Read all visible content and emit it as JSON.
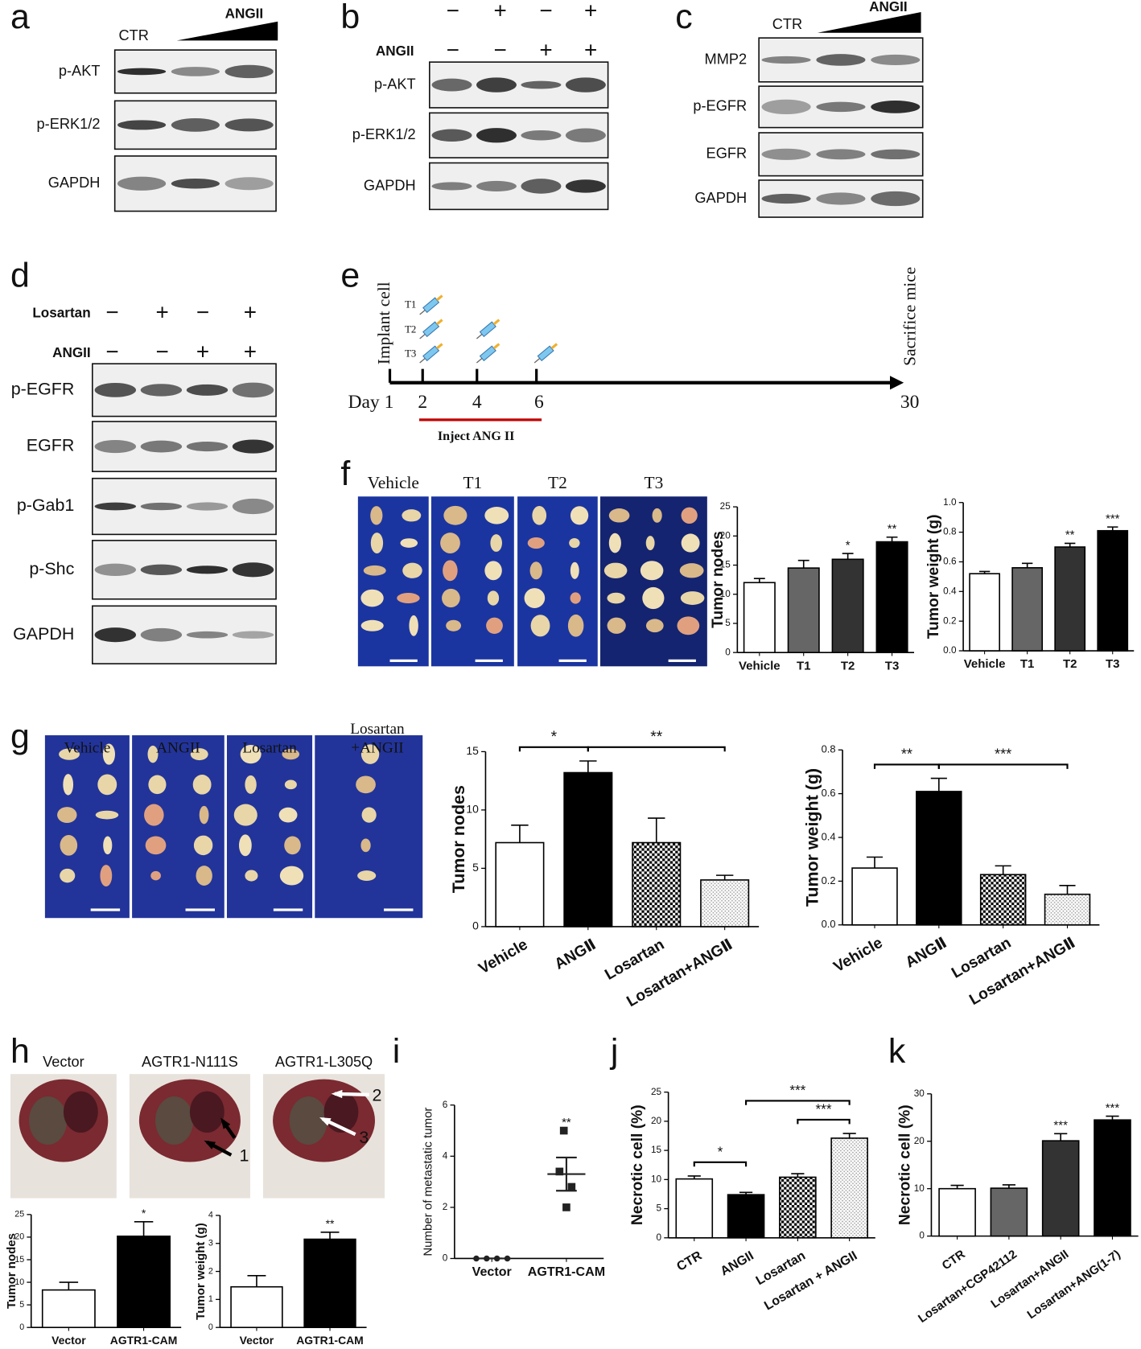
{
  "panel_letters": [
    "a",
    "b",
    "c",
    "d",
    "e",
    "f",
    "g",
    "h",
    "i",
    "j",
    "k"
  ],
  "blots": [
    {
      "header": [
        "CTR",
        "ANGII"
      ],
      "rows": [
        "p-AKT",
        "p-ERK1/2",
        "GAPDH"
      ]
    },
    {
      "treatments": [
        {
          "signs": [
            "−",
            "+",
            "−",
            "+"
          ]
        },
        {
          "label": "ANGII",
          "signs": [
            "−",
            "−",
            "+",
            "+"
          ]
        }
      ],
      "rows": [
        "p-AKT",
        "p-ERK1/2",
        "GAPDH"
      ]
    },
    {
      "header": [
        "CTR",
        "ANGII"
      ],
      "rows": [
        "MMP2",
        "p-EGFR",
        "EGFR",
        "GAPDH"
      ]
    },
    {
      "treatments": [
        {
          "label": "Losartan",
          "signs": [
            "−",
            "+",
            "−",
            "+"
          ]
        },
        {
          "label": "ANGII",
          "signs": [
            "−",
            "−",
            "+",
            "+"
          ]
        }
      ],
      "rows": [
        "p-EGFR",
        "EGFR",
        "p-Gab1",
        "p-Shc",
        "GAPDH"
      ]
    }
  ],
  "timeline": {
    "start_label": "Implant cell",
    "groups": [
      "T1",
      "T2",
      "T3"
    ],
    "day_label": "Day 1",
    "days": [
      "2",
      "4",
      "6",
      "30"
    ],
    "end_label": "Sacrifice mice",
    "inject_label": "Inject ANG II"
  },
  "photos": {
    "f": [
      "Vehicle",
      "T1",
      "T2",
      "T3"
    ],
    "g": [
      [
        "Vehicle"
      ],
      [
        "ANGII"
      ],
      [
        "Losartan"
      ],
      [
        "Losartan",
        "+ANGII"
      ]
    ],
    "h": [
      "Vector",
      "AGTR1-N111S",
      "AGTR1-L305Q"
    ],
    "h_arrows": [
      "1",
      "2",
      "3"
    ]
  },
  "chart_data": [
    {
      "type": "bar",
      "ylabel": "Tumor nodes",
      "categories": [
        "Vehicle",
        "T1",
        "T2",
        "T3"
      ],
      "values": [
        12,
        14.5,
        16,
        19
      ],
      "errors": [
        0.7,
        1.3,
        1.0,
        0.8
      ],
      "fills": [
        "#ffffff",
        "#666666",
        "#333333",
        "#000000"
      ],
      "sig_labels": [
        null,
        null,
        "*",
        "**"
      ],
      "ylim": [
        0,
        25
      ],
      "yticks": [
        0,
        5,
        10,
        15,
        20,
        25
      ]
    },
    {
      "type": "bar",
      "ylabel": "Tumor weight (g)",
      "categories": [
        "Vehicle",
        "T1",
        "T2",
        "T3"
      ],
      "values": [
        0.52,
        0.56,
        0.7,
        0.81
      ],
      "errors": [
        0.015,
        0.03,
        0.025,
        0.025
      ],
      "fills": [
        "#ffffff",
        "#666666",
        "#333333",
        "#000000"
      ],
      "sig_labels": [
        null,
        null,
        "**",
        "***"
      ],
      "ylim": [
        0,
        1.0
      ],
      "yticks": [
        {
          "value": 0,
          "label": "0.0"
        },
        0.2,
        0.4,
        0.6,
        0.8,
        {
          "value": 1,
          "label": "1.0"
        }
      ]
    },
    {
      "type": "bar",
      "ylabel": "Tumor nodes",
      "categories": [
        "Vehicle",
        "ANGⅡ",
        "Losartan",
        "Losartan+ANGⅡ"
      ],
      "values": [
        7.2,
        13.2,
        7.2,
        4.0
      ],
      "errors": [
        1.5,
        1.0,
        2.1,
        0.4
      ],
      "fills": [
        "#ffffff",
        "#000000",
        "checker",
        "dots"
      ],
      "brackets": [
        {
          "text": "*",
          "from": "Vehicle",
          "to": "ANGⅡ"
        },
        {
          "text": "**",
          "from": "ANGⅡ",
          "to": "Losartan+ANGⅡ"
        }
      ],
      "ylim": [
        0,
        15
      ],
      "yticks": [
        0,
        5,
        10,
        15
      ]
    },
    {
      "type": "bar",
      "ylabel": "Tumor weight (g)",
      "categories": [
        "Vehicle",
        "ANGⅡ",
        "Losartan",
        "Losartan+ANGⅡ"
      ],
      "values": [
        0.26,
        0.61,
        0.23,
        0.14
      ],
      "errors": [
        0.05,
        0.06,
        0.04,
        0.04
      ],
      "fills": [
        "#ffffff",
        "#000000",
        "checker",
        "dots"
      ],
      "brackets": [
        {
          "text": "**",
          "from": "Vehicle",
          "to": "ANGⅡ"
        },
        {
          "text": "***",
          "from": "ANGⅡ",
          "to": "Losartan+ANGⅡ"
        }
      ],
      "ylim": [
        0,
        0.8
      ],
      "yticks": [
        {
          "value": 0,
          "label": "0.0"
        },
        0.2,
        0.4,
        0.6,
        0.8
      ]
    },
    {
      "type": "bar",
      "ylabel": "Tumor nodes",
      "categories": [
        "Vector",
        "AGTR1-CAM"
      ],
      "values": [
        8.3,
        20.2
      ],
      "errors": [
        1.7,
        3.2
      ],
      "fills": [
        "#ffffff",
        "#000000"
      ],
      "sig_labels": [
        null,
        "*"
      ],
      "ylim": [
        0,
        25
      ],
      "yticks": [
        0,
        5,
        10,
        15,
        20,
        25
      ]
    },
    {
      "type": "bar",
      "ylabel": "Tumor weight (g)",
      "categories": [
        "Vector",
        "AGTR1-CAM"
      ],
      "values": [
        1.45,
        3.15
      ],
      "errors": [
        0.4,
        0.25
      ],
      "fills": [
        "#ffffff",
        "#000000"
      ],
      "sig_labels": [
        null,
        "**"
      ],
      "ylim": [
        0,
        4
      ],
      "yticks": [
        0,
        1,
        2,
        3,
        4
      ]
    },
    {
      "type": "scatter",
      "ylabel": "Number of metastatic tumor",
      "categories": [
        "Vector",
        "AGTR1-CAM"
      ],
      "points": [
        [
          0,
          0,
          0,
          0
        ],
        [
          5,
          3.4,
          2.8,
          2.0
        ]
      ],
      "markers": [
        "circle",
        "square"
      ],
      "means": [
        0,
        3.3
      ],
      "errors": [
        0,
        0.65
      ],
      "sig_labels": [
        null,
        "**"
      ],
      "color": "#222222",
      "ylim": [
        0,
        6
      ],
      "yticks": [
        0,
        2,
        4,
        6
      ]
    },
    {
      "type": "bar",
      "ylabel": "Necrotic cell (%)",
      "categories": [
        "CTR",
        "ANGII",
        "Losartan",
        "Losartan + ANGII"
      ],
      "values": [
        10.1,
        7.4,
        10.4,
        17.1
      ],
      "errors": [
        0.5,
        0.4,
        0.6,
        0.8
      ],
      "fills": [
        "#ffffff",
        "#000000",
        "checker",
        "dots"
      ],
      "brackets": [
        {
          "text": "*",
          "from": "CTR",
          "to": "ANGII"
        },
        {
          "text": "***",
          "from": "ANGII",
          "to": "Losartan + ANGII"
        },
        {
          "text": "***",
          "from": "Losartan",
          "to": "Losartan + ANGII"
        }
      ],
      "ylim": [
        0,
        25
      ],
      "yticks": [
        0,
        5,
        10,
        15,
        20,
        25
      ]
    },
    {
      "type": "bar",
      "ylabel": "Necrotic cell (%)",
      "categories": [
        "CTR",
        "Losartan+CGP42112",
        "Losartan+ANGII",
        "Losartan+ANG(1-7)"
      ],
      "values": [
        10,
        10.1,
        20.1,
        24.5
      ],
      "errors": [
        0.7,
        0.7,
        1.5,
        0.8
      ],
      "fills": [
        "#ffffff",
        "#666666",
        "#333333",
        "#000000"
      ],
      "sig_labels": [
        null,
        null,
        "***",
        "***"
      ],
      "ylim": [
        0,
        30
      ],
      "yticks": [
        0,
        10,
        20,
        30
      ]
    }
  ]
}
